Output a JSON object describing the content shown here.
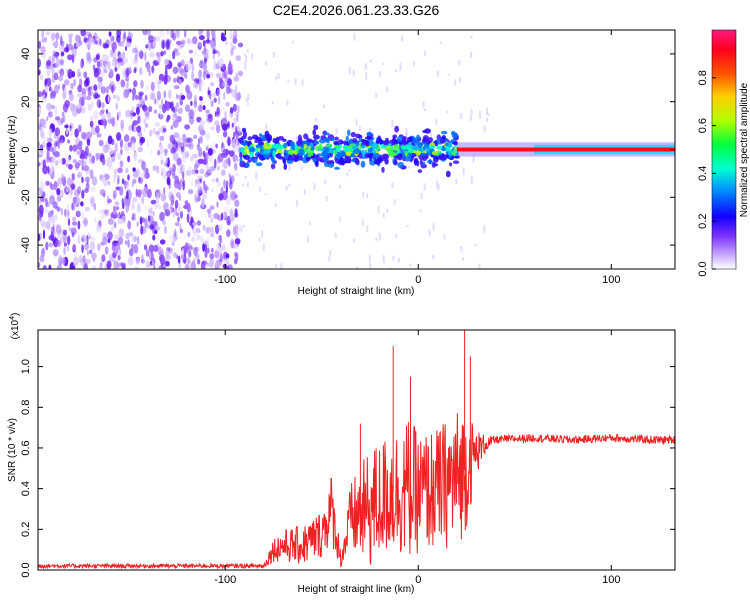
{
  "figure_title": "C2E4.2026.061.23.33.G26",
  "chart_data": [
    {
      "type": "heatmap",
      "name": "spectrogram",
      "xlabel": "Height of straight line (km)",
      "ylabel": "Frequency (Hz)",
      "xlim": [
        -197,
        133
      ],
      "ylim": [
        -50,
        50
      ],
      "xticks": [
        -100,
        0,
        100
      ],
      "yticks": [
        -40,
        -20,
        0,
        20,
        40
      ],
      "xtick_labels": [
        "-100",
        "0",
        "100"
      ],
      "ytick_labels": [
        "-40",
        "-20",
        "0",
        "20",
        "40"
      ],
      "noise_region_km": [
        -197,
        -92
      ],
      "scintillation_region_km": [
        -92,
        20
      ],
      "coherent_tone_region_km": [
        20,
        133
      ],
      "tone_frequency_hz": 0,
      "colorbar": {
        "label": "Normalized spectral amplitude",
        "range": [
          0,
          1
        ],
        "ticks": [
          0.0,
          0.2,
          0.4,
          0.6,
          0.8
        ],
        "tick_labels": [
          "0.0",
          "0.2",
          "0.4",
          "0.6",
          "0.8"
        ],
        "colormap": [
          "#ffffff",
          "#a060ff",
          "#2000ff",
          "#00c8ff",
          "#00ff60",
          "#ffe600",
          "#ff5a00",
          "#ff0000",
          "#ff1880"
        ]
      }
    },
    {
      "type": "line",
      "name": "snr",
      "xlabel": "Height of straight line (km)",
      "ylabel": "SNR (10 * v/v)",
      "multiplier_label": "(x10",
      "multiplier_exp": "4",
      "multiplier_close": ")",
      "xlim": [
        -197,
        133
      ],
      "ylim": [
        0,
        1.18
      ],
      "xticks": [
        -100,
        0,
        100
      ],
      "yticks": [
        0.0,
        0.2,
        0.4,
        0.6,
        0.8,
        1.0
      ],
      "xtick_labels": [
        "-100",
        "0",
        "100"
      ],
      "ytick_labels": [
        "0.0",
        "0.2",
        "0.4",
        "0.6",
        "0.8",
        "1.0"
      ],
      "color": "#ee2222",
      "envelope": {
        "x": [
          -197,
          -100,
          -80,
          -75,
          -70,
          -60,
          -50,
          -45,
          -40,
          -35,
          -25,
          -15,
          -5,
          0,
          10,
          20,
          25,
          30,
          35,
          40,
          60,
          80,
          100,
          120,
          133
        ],
        "mean": [
          0.02,
          0.02,
          0.02,
          0.1,
          0.12,
          0.12,
          0.18,
          0.3,
          0.05,
          0.25,
          0.3,
          0.38,
          0.4,
          0.38,
          0.4,
          0.45,
          0.5,
          0.58,
          0.62,
          0.64,
          0.65,
          0.64,
          0.65,
          0.64,
          0.64
        ],
        "amp": [
          0.01,
          0.01,
          0.01,
          0.06,
          0.08,
          0.1,
          0.12,
          0.18,
          0.04,
          0.18,
          0.3,
          0.3,
          0.35,
          0.3,
          0.3,
          0.35,
          0.3,
          0.12,
          0.04,
          0.02,
          0.02,
          0.02,
          0.02,
          0.02,
          0.02
        ]
      },
      "peaks": [
        {
          "x": -13,
          "y": 1.1
        },
        {
          "x": -4,
          "y": 0.95
        },
        {
          "x": 24,
          "y": 1.18
        },
        {
          "x": 27,
          "y": 1.05
        },
        {
          "x": -30,
          "y": 0.72
        }
      ]
    }
  ]
}
